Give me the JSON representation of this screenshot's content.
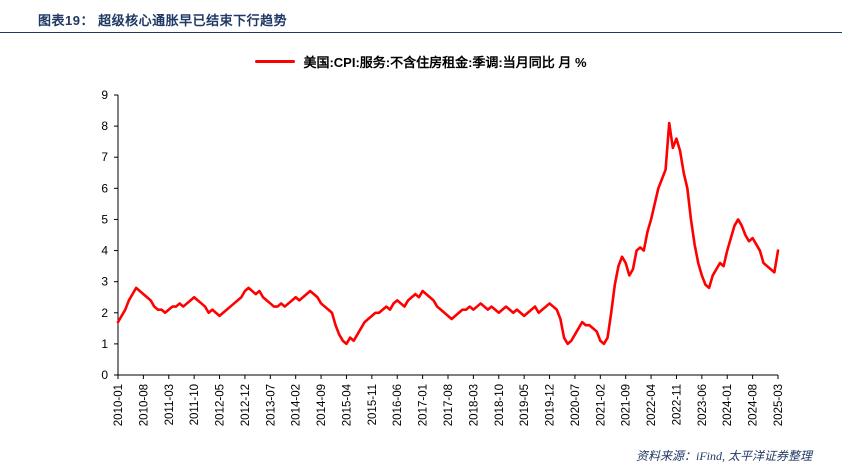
{
  "header": {
    "title": "图表19： 超级核心通胀早已结束下行趋势"
  },
  "legend": {
    "label": "美国:CPI:服务:不含住房租金:季调:当月同比 月 %"
  },
  "footer": {
    "source": "资料来源：iFind,  太平洋证券整理"
  },
  "colors": {
    "line": "#FF0000",
    "title": "#1F3864",
    "rule": "#1F3864",
    "axis": "#000000",
    "tick_label": "#000000",
    "source_text": "#1F3864"
  },
  "chart_data": {
    "type": "line",
    "title": "",
    "legend": "美国:CPI:服务:不含住房租金:季调:当月同比 月 %",
    "xlabel": "",
    "ylabel": "",
    "ylim": [
      0,
      9
    ],
    "yticks": [
      0,
      1,
      2,
      3,
      4,
      5,
      6,
      7,
      8,
      9
    ],
    "grid": false,
    "legend_position": "top-center",
    "x_start": "2010-01",
    "x_end": "2025-03",
    "x_frequency": "monthly",
    "xtick_every": 7,
    "xtick_labels": [
      "2010-01",
      "2010-08",
      "2011-03",
      "2011-10",
      "2012-05",
      "2012-12",
      "2013-07",
      "2014-02",
      "2014-09",
      "2015-04",
      "2015-11",
      "2016-06",
      "2017-01",
      "2017-08",
      "2018-03",
      "2018-10",
      "2019-05",
      "2019-12",
      "2020-07",
      "2021-02",
      "2021-09",
      "2022-04",
      "2022-11",
      "2023-06",
      "2024-01",
      "2024-08",
      "2025-03"
    ],
    "values": [
      1.7,
      1.9,
      2.1,
      2.4,
      2.6,
      2.8,
      2.7,
      2.6,
      2.5,
      2.4,
      2.2,
      2.1,
      2.1,
      2.0,
      2.1,
      2.2,
      2.2,
      2.3,
      2.2,
      2.3,
      2.4,
      2.5,
      2.4,
      2.3,
      2.2,
      2.0,
      2.1,
      2.0,
      1.9,
      2.0,
      2.1,
      2.2,
      2.3,
      2.4,
      2.5,
      2.7,
      2.8,
      2.7,
      2.6,
      2.7,
      2.5,
      2.4,
      2.3,
      2.2,
      2.2,
      2.3,
      2.2,
      2.3,
      2.4,
      2.5,
      2.4,
      2.5,
      2.6,
      2.7,
      2.6,
      2.5,
      2.3,
      2.2,
      2.1,
      2.0,
      1.6,
      1.3,
      1.1,
      1.0,
      1.2,
      1.1,
      1.3,
      1.5,
      1.7,
      1.8,
      1.9,
      2.0,
      2.0,
      2.1,
      2.2,
      2.1,
      2.3,
      2.4,
      2.3,
      2.2,
      2.4,
      2.5,
      2.6,
      2.5,
      2.7,
      2.6,
      2.5,
      2.4,
      2.2,
      2.1,
      2.0,
      1.9,
      1.8,
      1.9,
      2.0,
      2.1,
      2.1,
      2.2,
      2.1,
      2.2,
      2.3,
      2.2,
      2.1,
      2.2,
      2.1,
      2.0,
      2.1,
      2.2,
      2.1,
      2.0,
      2.1,
      2.0,
      1.9,
      2.0,
      2.1,
      2.2,
      2.0,
      2.1,
      2.2,
      2.3,
      2.2,
      2.1,
      1.8,
      1.2,
      1.0,
      1.1,
      1.3,
      1.5,
      1.7,
      1.6,
      1.6,
      1.5,
      1.4,
      1.1,
      1.0,
      1.2,
      2.0,
      2.9,
      3.5,
      3.8,
      3.6,
      3.2,
      3.4,
      4.0,
      4.1,
      4.0,
      4.6,
      5.0,
      5.5,
      6.0,
      6.3,
      6.6,
      8.1,
      7.3,
      7.6,
      7.2,
      6.5,
      6.0,
      5.0,
      4.2,
      3.6,
      3.2,
      2.9,
      2.8,
      3.2,
      3.4,
      3.6,
      3.5,
      4.0,
      4.4,
      4.8,
      5.0,
      4.8,
      4.5,
      4.3,
      4.4,
      4.2,
      4.0,
      3.6,
      3.5,
      3.4,
      3.3,
      4.0
    ]
  }
}
